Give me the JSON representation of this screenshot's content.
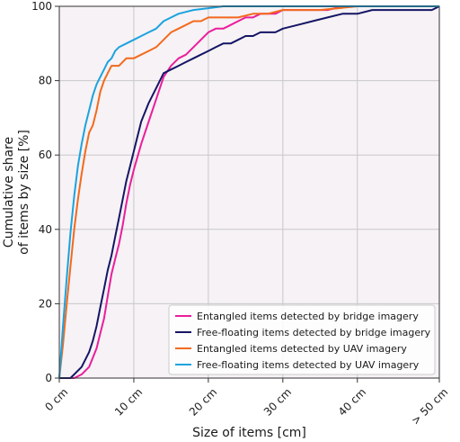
{
  "chart_data": {
    "type": "line",
    "title": "",
    "xlabel": "Size of items [cm]",
    "ylabel_lines": [
      "Cumulative share",
      "of items by size [%]"
    ],
    "xlim": [
      0,
      51
    ],
    "ylim": [
      0,
      100
    ],
    "x_ticks": [
      {
        "value": 0,
        "label": "0 cm"
      },
      {
        "value": 10,
        "label": "10 cm"
      },
      {
        "value": 20,
        "label": "20 cm"
      },
      {
        "value": 30,
        "label": "30 cm"
      },
      {
        "value": 40,
        "label": "40 cm"
      },
      {
        "value": 51,
        "label": "> 50 cm"
      }
    ],
    "y_ticks": [
      0,
      20,
      40,
      60,
      80,
      100
    ],
    "grid": true,
    "plot_background": "#f6f2f5",
    "legend_position": "lower-right",
    "series": [
      {
        "name": "Entangled items detected by bridge imagery",
        "color": "#ea1e9c",
        "x": [
          0,
          2,
          3,
          4,
          5,
          5.5,
          6,
          6.5,
          7,
          7.5,
          8,
          8.5,
          9,
          9.5,
          10,
          11,
          12,
          13,
          14,
          15,
          16,
          17,
          18,
          19,
          20,
          21,
          22,
          23,
          24,
          25,
          26,
          27,
          28,
          29,
          30,
          32,
          34,
          36,
          38,
          40,
          42,
          44,
          46,
          48,
          50,
          51
        ],
        "y": [
          0,
          0,
          1,
          3,
          8,
          12,
          16,
          22,
          28,
          32,
          36,
          41,
          47,
          52,
          56,
          63,
          69,
          75,
          81,
          84,
          86,
          87,
          89,
          91,
          93,
          94,
          94,
          95,
          96,
          97,
          97,
          98,
          98,
          98,
          99,
          99,
          99,
          99,
          100,
          100,
          100,
          100,
          100,
          100,
          100,
          100
        ]
      },
      {
        "name": "Free-floating items detected by bridge imagery",
        "color": "#151565",
        "x": [
          0,
          1.5,
          2,
          3,
          4,
          4.5,
          5,
          5.5,
          6,
          6.5,
          7,
          7.5,
          8,
          8.5,
          9,
          9.5,
          10,
          11,
          12,
          13,
          14,
          15,
          16,
          17,
          18,
          19,
          20,
          21,
          22,
          23,
          24,
          25,
          26,
          27,
          28,
          29,
          30,
          32,
          34,
          36,
          38,
          40,
          42,
          44,
          46,
          48,
          50,
          51
        ],
        "y": [
          0,
          0,
          1,
          3,
          7,
          10,
          14,
          19,
          24,
          29,
          33,
          38,
          43,
          48,
          53,
          57,
          61,
          69,
          74,
          78,
          82,
          83,
          84,
          85,
          86,
          87,
          88,
          89,
          90,
          90,
          91,
          92,
          92,
          93,
          93,
          93,
          94,
          95,
          96,
          97,
          98,
          98,
          99,
          99,
          99,
          99,
          99,
          100
        ]
      },
      {
        "name": "Entangled items detected by UAV imagery",
        "color": "#f26a1d",
        "x": [
          0,
          0.5,
          1,
          1.5,
          2,
          2.5,
          3,
          3.5,
          4,
          4.5,
          5,
          5.5,
          6,
          6.5,
          7,
          8,
          9,
          10,
          11,
          12,
          13,
          14,
          15,
          16,
          17,
          18,
          19,
          20,
          22,
          24,
          26,
          28,
          30,
          35,
          40,
          45,
          51
        ],
        "y": [
          0,
          9,
          20,
          30,
          40,
          48,
          55,
          61,
          66,
          68,
          72,
          77,
          80,
          82,
          84,
          84,
          86,
          86,
          87,
          88,
          89,
          91,
          93,
          94,
          95,
          96,
          96,
          97,
          97,
          97,
          98,
          98,
          99,
          99,
          100,
          100,
          100
        ]
      },
      {
        "name": "Free-floating items detected by UAV imagery",
        "color": "#1ba3df",
        "x": [
          0,
          0.5,
          1,
          1.5,
          2,
          2.5,
          3,
          3.5,
          4,
          4.5,
          5,
          5.5,
          6,
          6.5,
          7,
          7.5,
          8,
          9,
          10,
          11,
          12,
          13,
          14,
          15,
          16,
          17,
          18,
          20,
          22,
          25,
          30,
          51
        ],
        "y": [
          0,
          14,
          27,
          39,
          49,
          57,
          63,
          68,
          72,
          76,
          79,
          81,
          83,
          85,
          86,
          88,
          89,
          90,
          91,
          92,
          93,
          94,
          96,
          97,
          98,
          98.5,
          99,
          99.5,
          100,
          100,
          100,
          100
        ]
      }
    ]
  }
}
